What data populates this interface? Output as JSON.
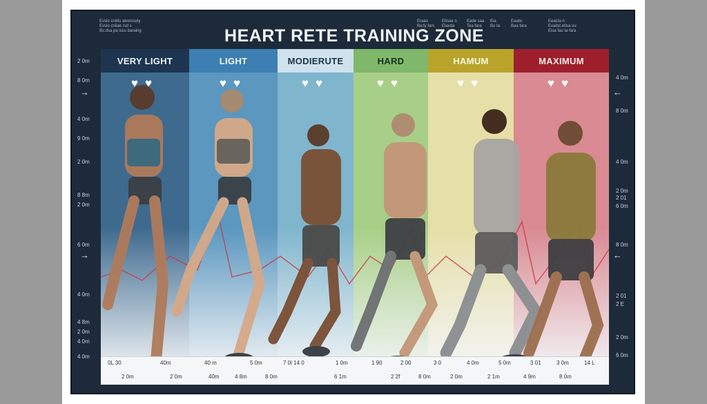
{
  "title": "HEART RETE TRAINING ZONE",
  "notes_top_left": [
    "Evsio cniitis alvesssdy",
    "Evsio cniiae rsd s",
    "Bs:dsa pa issu baraing"
  ],
  "notes_top_right": [
    [
      "Eraao",
      "Ba:fy fars"
    ],
    [
      "Eitsae n",
      "Elavda"
    ],
    [
      "Eade saa",
      "Tea fara"
    ],
    [
      "Eia",
      "Bu ta"
    ],
    [
      "Eaatic",
      "Baa fara"
    ],
    [
      "Eeacta n",
      "Evaitst etisa uu",
      "Eisa fau ta fara"
    ]
  ],
  "zones": [
    {
      "label": "VERY LIGHT",
      "head_color": "#1d3550",
      "head_text": "#eef3f8",
      "body": "#3e6a8e"
    },
    {
      "label": "LIGHT",
      "head_color": "#3d7fb3",
      "head_text": "#eef5fb",
      "body": "#5b97bf"
    },
    {
      "label": "MODIERUTE",
      "head_color": "#cfe2ee",
      "head_text": "#1f3347",
      "body": "#7fb5cd"
    },
    {
      "label": "HARD",
      "head_color": "#7fb86a",
      "head_text": "#16301a",
      "body": "#a8cf87"
    },
    {
      "label": "HAMUM",
      "head_color": "#b9a32a",
      "head_text": "#fbf8df",
      "body": "#e6dfa8"
    },
    {
      "label": "MAXIMUM",
      "head_color": "#9d1f2c",
      "head_text": "#fbe9ea",
      "body": "#d98a92"
    }
  ],
  "left_axis": [
    "2 0m",
    "8 0m",
    "4 0m",
    "9 0m",
    "2 0m",
    "8 8m",
    "2 0m",
    "6 0m",
    "4 0m",
    "4 8m",
    "2 0m",
    "4 0m",
    "4 0m"
  ],
  "right_axis": [
    "4 0m",
    "8 0m",
    "4 0m",
    "2 0m",
    "2 01",
    "6 0m",
    "8 0m",
    "2 01",
    "2 E",
    "2 0m",
    "6 0m"
  ],
  "bottom_row1": [
    "0L 30",
    "40m",
    "40 m",
    "5 0m",
    "7 0l 14 0",
    "1 0m",
    "1 90",
    "2 00",
    "3 0",
    "4 0m",
    "5 0m",
    "3 01",
    "3 0m",
    "14 L"
  ],
  "bottom_row2": [
    "2 0m",
    "2 0m",
    "40m",
    "4 8m",
    "8 0m",
    "6 1m",
    "2 2f",
    "8 0m",
    "2 0m",
    "2 1m",
    "4 9m",
    "8 0m"
  ],
  "hearts": "♥♥",
  "colors": {
    "poster_bg": "#1d2a3a",
    "chart_bg": "#eef1f4"
  }
}
